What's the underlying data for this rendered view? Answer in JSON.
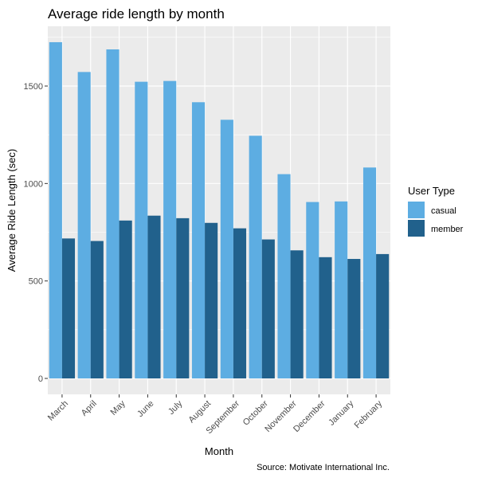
{
  "chart_data": {
    "type": "bar",
    "title": "Average ride length by month",
    "xlabel": "Month",
    "ylabel": "Average Ride Length (sec)",
    "caption": "Source: Motivate International Inc.",
    "categories": [
      "March",
      "April",
      "May",
      "June",
      "July",
      "August",
      "September",
      "October",
      "November",
      "December",
      "January",
      "February"
    ],
    "series": [
      {
        "name": "casual",
        "color": "#5DADE2",
        "values": [
          1725,
          1572,
          1688,
          1522,
          1526,
          1417,
          1327,
          1245,
          1048,
          905,
          908,
          1082
        ]
      },
      {
        "name": "member",
        "color": "#21618C",
        "values": [
          718,
          705,
          810,
          835,
          822,
          798,
          770,
          713,
          657,
          622,
          613,
          638
        ]
      }
    ],
    "ylim": [
      0,
      1800
    ],
    "yticks": [
      0,
      500,
      1000,
      1500
    ],
    "legend": {
      "title": "User Type",
      "position": "right"
    },
    "grid": true,
    "panel_background": "#EBEBEB"
  }
}
